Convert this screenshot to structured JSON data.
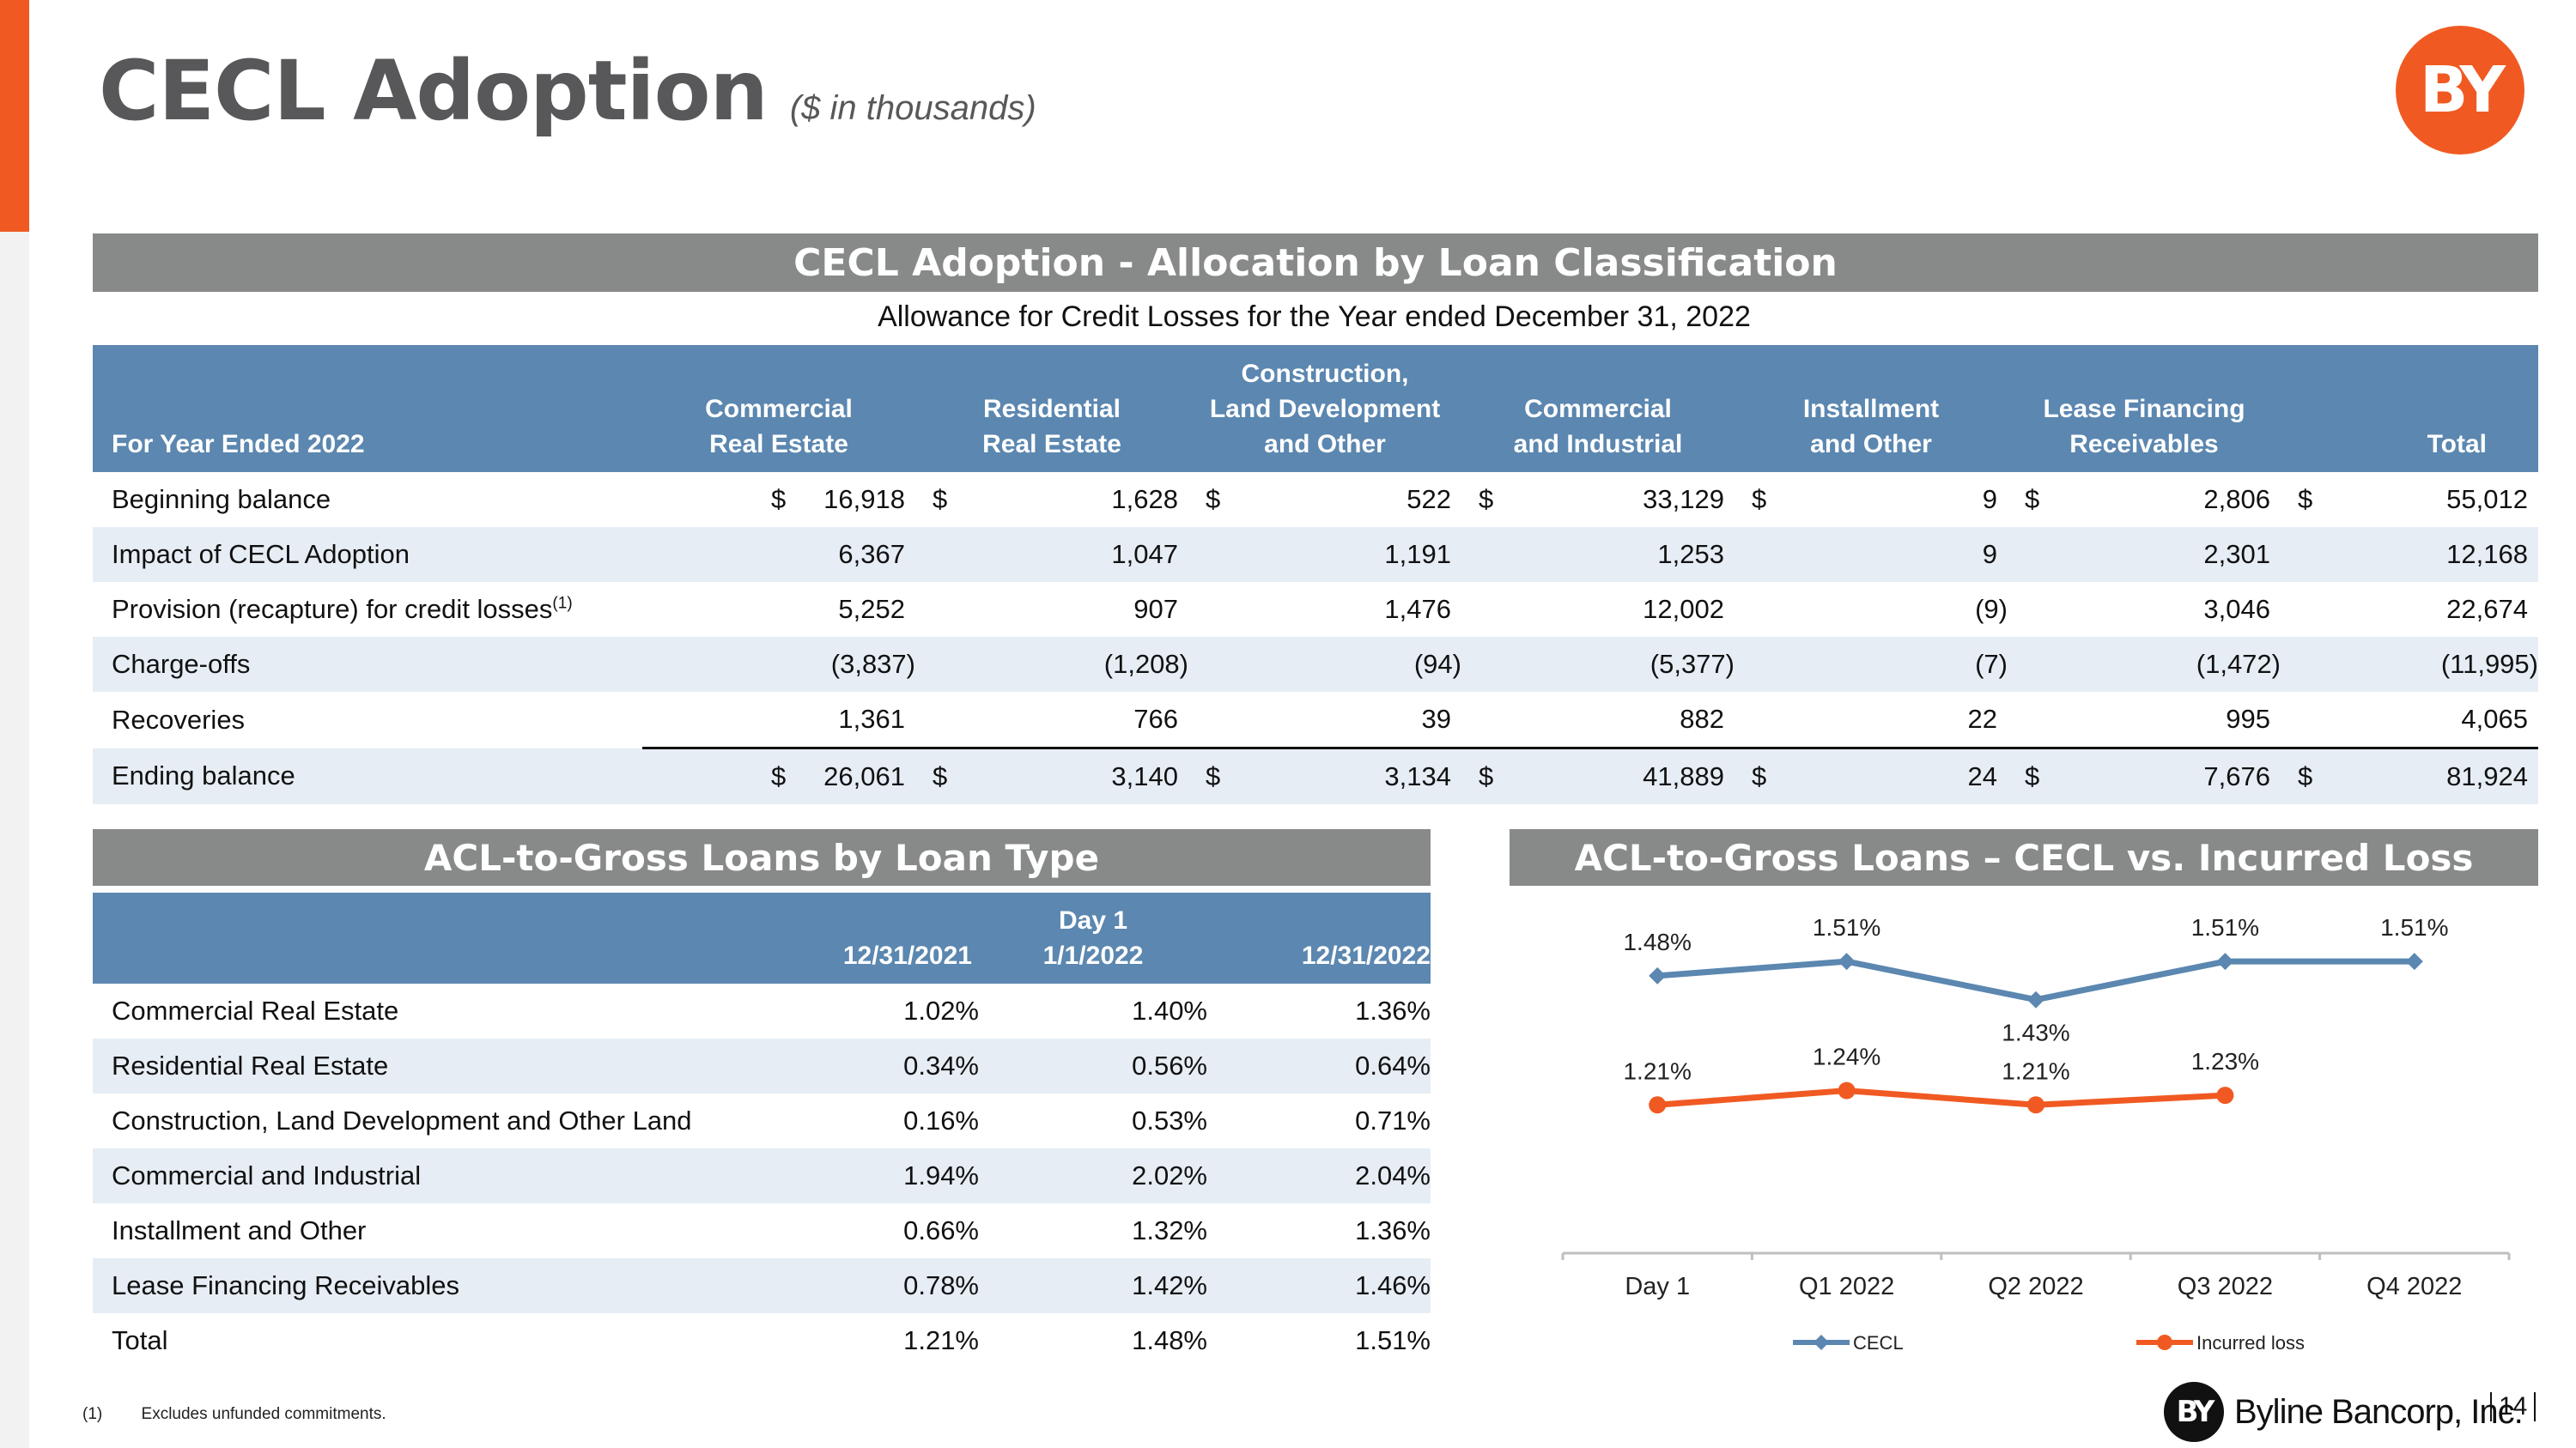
{
  "header": {
    "title": "CECL Adoption",
    "subtitle": "($ in thousands)",
    "logo_text": "BY"
  },
  "allocation": {
    "banner": "CECL Adoption - Allocation by Loan Classification",
    "caption": "Allowance for Credit Losses for the Year ended December 31, 2022",
    "columns": {
      "label": "For Year Ended 2022",
      "cre": [
        "Commercial",
        "Real Estate"
      ],
      "rre": [
        "Residential",
        "Real Estate"
      ],
      "cld": [
        "Construction,",
        "Land Development",
        "and Other"
      ],
      "ci": [
        "Commercial",
        "and Industrial"
      ],
      "inst": [
        "Installment",
        "and Other"
      ],
      "lease": [
        "Lease Financing",
        "Receivables"
      ],
      "total": "Total"
    },
    "rows": [
      {
        "label": "Beginning balance",
        "sup": "",
        "dollar": "$",
        "values": [
          "16,918",
          "1,628",
          "522",
          "33,129",
          "9",
          "2,806",
          "55,012"
        ]
      },
      {
        "label": "Impact of CECL Adoption",
        "sup": "",
        "dollar": "",
        "values": [
          "6,367",
          "1,047",
          "1,191",
          "1,253",
          "9",
          "2,301",
          "12,168"
        ]
      },
      {
        "label": "Provision (recapture) for credit losses",
        "sup": "(1)",
        "dollar": "",
        "values": [
          "5,252",
          "907",
          "1,476",
          "12,002",
          "(9)",
          "3,046",
          "22,674"
        ]
      },
      {
        "label": "Charge-offs",
        "sup": "",
        "dollar": "",
        "values": [
          "(3,837)",
          "(1,208)",
          "(94)",
          "(5,377)",
          "(7)",
          "(1,472)",
          "(11,995)"
        ]
      },
      {
        "label": "Recoveries",
        "sup": "",
        "dollar": "",
        "values": [
          "1,361",
          "766",
          "39",
          "882",
          "22",
          "995",
          "4,065"
        ]
      },
      {
        "label": "Ending balance",
        "sup": "",
        "dollar": "$",
        "values": [
          "26,061",
          "3,140",
          "3,134",
          "41,889",
          "24",
          "7,676",
          "81,924"
        ]
      }
    ]
  },
  "acl_by_type": {
    "banner": "ACL-to-Gross Loans by Loan Type",
    "columns": {
      "c1": "12/31/2021",
      "c2": [
        "Day 1",
        "1/1/2022"
      ],
      "c3": "12/31/2022"
    },
    "rows": [
      {
        "label": "Commercial Real Estate",
        "values": [
          "1.02%",
          "1.40%",
          "1.36%"
        ]
      },
      {
        "label": "Residential Real Estate",
        "values": [
          "0.34%",
          "0.56%",
          "0.64%"
        ]
      },
      {
        "label": "Construction, Land Development and Other Land",
        "values": [
          "0.16%",
          "0.53%",
          "0.71%"
        ]
      },
      {
        "label": "Commercial and Industrial",
        "values": [
          "1.94%",
          "2.02%",
          "2.04%"
        ]
      },
      {
        "label": "Installment and Other",
        "values": [
          "0.66%",
          "1.32%",
          "1.36%"
        ]
      },
      {
        "label": "Lease Financing Receivables",
        "values": [
          "0.78%",
          "1.42%",
          "1.46%"
        ]
      },
      {
        "label": "Total",
        "values": [
          "1.21%",
          "1.48%",
          "1.51%"
        ]
      }
    ]
  },
  "chart_banner": "ACL-to-Gross Loans – CECL vs. Incurred Loss",
  "chart_data": {
    "type": "line",
    "title": "ACL-to-Gross Loans – CECL vs. Incurred Loss",
    "categories": [
      "Day 1",
      "Q1 2022",
      "Q2 2022",
      "Q3 2022",
      "Q4 2022"
    ],
    "series": [
      {
        "name": "CECL",
        "color": "#5b87b0",
        "values": [
          1.48,
          1.51,
          1.43,
          1.51,
          1.51
        ],
        "labels": [
          "1.48%",
          "1.51%",
          "1.43%",
          "1.51%",
          "1.51%"
        ]
      },
      {
        "name": "Incurred loss",
        "color": "#f05a22",
        "values": [
          1.21,
          1.24,
          1.21,
          1.23,
          null
        ],
        "labels": [
          "1.21%",
          "1.24%",
          "1.21%",
          "1.23%",
          null
        ]
      }
    ],
    "xlabel": "",
    "ylabel": "",
    "ylim": [
      0.9,
      1.6
    ],
    "legend": "bottom"
  },
  "footer": {
    "footnote_marker": "(1)",
    "footnote_text": "Excludes unfunded commitments.",
    "brand_mark": "BY",
    "brand_name": "Byline Bancorp, Inc.",
    "page_number": "14"
  }
}
